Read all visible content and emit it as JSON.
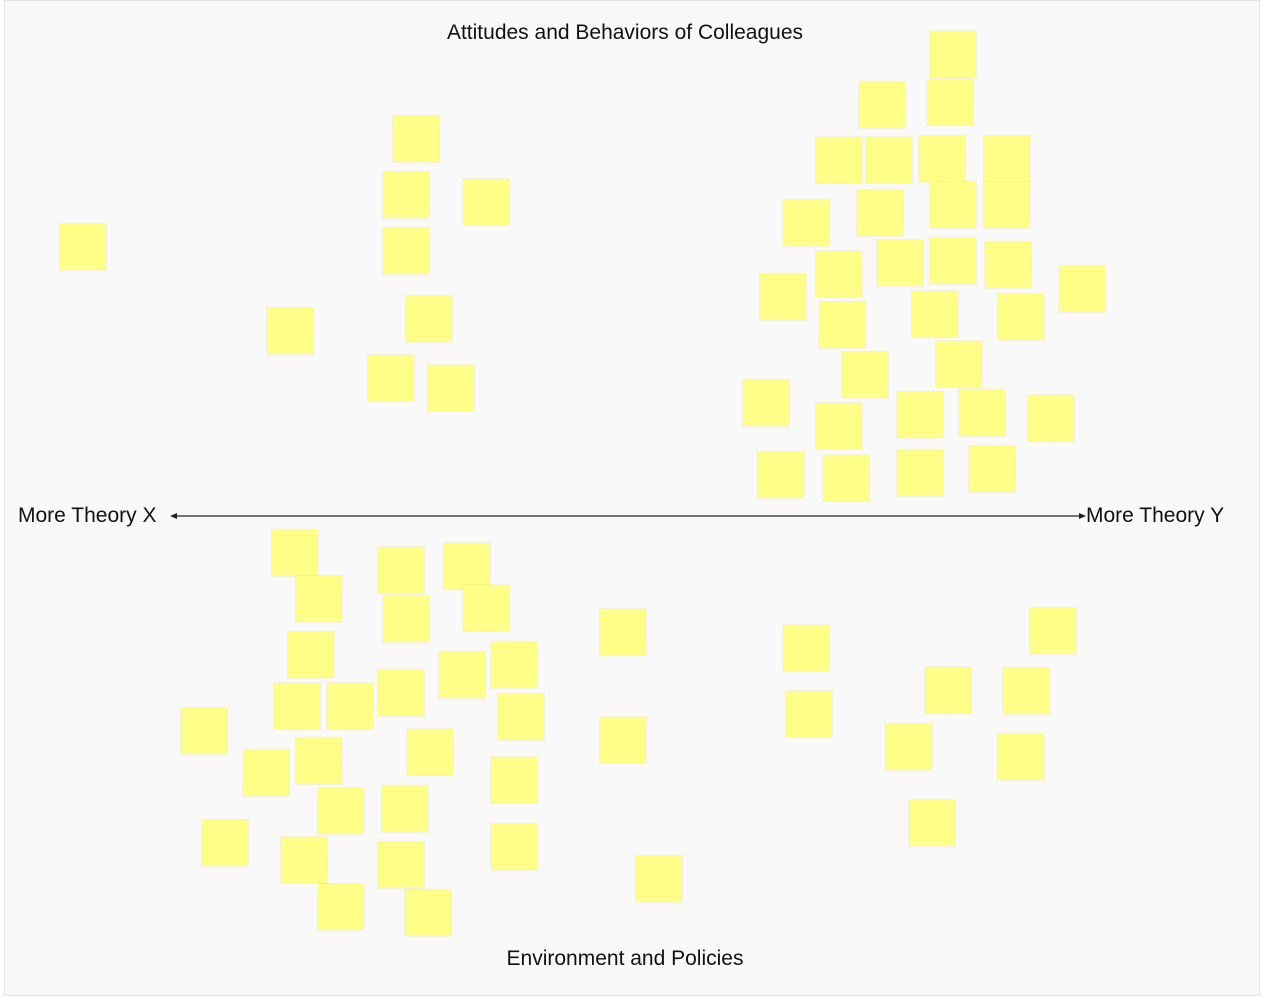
{
  "board": {
    "top_label": "Attitudes and Behaviors of Colleagues",
    "bottom_label": "Environment and Policies",
    "left_label": "More Theory X",
    "right_label": "More Theory Y",
    "note_color": "#ffff88",
    "axis_color": "#222222",
    "note_count": 82
  }
}
